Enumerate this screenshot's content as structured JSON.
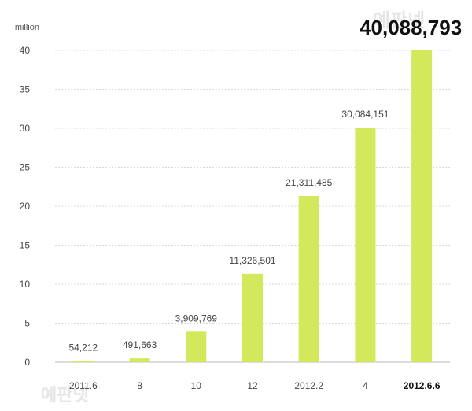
{
  "chart_data": {
    "type": "bar",
    "unit_label": "million",
    "categories": [
      "2011.6",
      "8",
      "10",
      "12",
      "2012.2",
      "4",
      "2012.6.6"
    ],
    "values": [
      54212,
      491663,
      3909769,
      11326501,
      21311485,
      30084151,
      40088793
    ],
    "value_labels": [
      "54,212",
      "491,663",
      "3,909,769",
      "11,326,501",
      "21,311,485",
      "30,084,151",
      "40,088,793"
    ],
    "highlight_index": 6,
    "ylim": [
      0,
      40
    ],
    "yticks": [
      0,
      5,
      10,
      15,
      20,
      25,
      30,
      35,
      40
    ],
    "grid": true,
    "bar_color": "#d4e85c",
    "grid_color": "#d8d8d8"
  },
  "watermark": {
    "text": "예판넷"
  }
}
